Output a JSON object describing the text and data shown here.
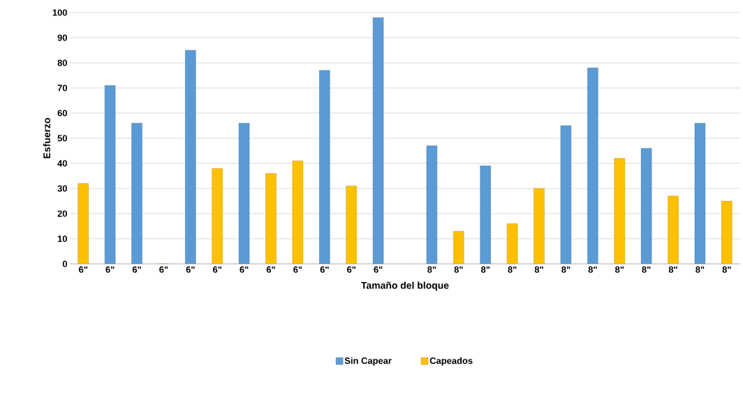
{
  "chart_data": {
    "type": "bar",
    "xlabel": "Tamaño del bloque",
    "ylabel": "Esfuerzo",
    "categories": [
      "6\"",
      "6\"",
      "6\"",
      "6\"",
      "6\"",
      "6\"",
      "6\"",
      "6\"",
      "6\"",
      "6\"",
      "6\"",
      "6\"",
      null,
      "8\"",
      "8\"",
      "8\"",
      "8\"",
      "8\"",
      "8\"",
      "8\"",
      "8\"",
      "8\"",
      "8\"",
      "8\"",
      "8\""
    ],
    "series": [
      {
        "name": "Sin Capear",
        "color": "#5b9bd5",
        "values": [
          null,
          71,
          56,
          null,
          85,
          null,
          56,
          null,
          null,
          77,
          null,
          98,
          null,
          47,
          null,
          39,
          null,
          null,
          55,
          78,
          null,
          46,
          null,
          56,
          null
        ]
      },
      {
        "name": "Capeados",
        "color": "#ffc000",
        "values": [
          32,
          null,
          null,
          0,
          null,
          38,
          null,
          36,
          41,
          null,
          31,
          null,
          null,
          null,
          13,
          null,
          16,
          30,
          null,
          null,
          42,
          null,
          27,
          null,
          25
        ]
      }
    ],
    "ylim": [
      0,
      100
    ],
    "yticks": [
      0,
      10,
      20,
      30,
      40,
      50,
      60,
      70,
      80,
      90,
      100
    ],
    "grid": "y",
    "legend": "bottom"
  }
}
